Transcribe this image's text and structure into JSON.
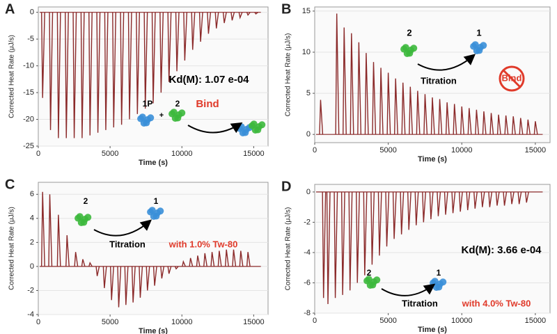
{
  "chart_data": [
    {
      "type": "spike",
      "label": "A",
      "xlabel": "Time (s)",
      "ylabel": "Corrected Heat Rate (μJ/s)",
      "xlim": [
        0,
        16000
      ],
      "ylim": [
        -25,
        1
      ],
      "xticks": [
        0,
        5000,
        10000,
        15000
      ],
      "yticks": [
        0,
        -5,
        -10,
        -15,
        -20,
        -25
      ],
      "color": "#8b2a2a",
      "x": [
        300,
        850,
        1400,
        1950,
        2500,
        3050,
        3600,
        4150,
        4700,
        5250,
        5800,
        6350,
        6900,
        7450,
        8000,
        8550,
        9100,
        9650,
        10200,
        10750,
        11300,
        11850,
        12400,
        12950,
        13500,
        14050,
        14600,
        15150
      ],
      "values": [
        -16,
        -22,
        -23.5,
        -23.5,
        -23.5,
        -23.5,
        -23,
        -22.5,
        -22,
        -21.5,
        -21,
        -20,
        -19,
        -18,
        -17,
        -15,
        -13,
        -11,
        -9,
        -7,
        -5.5,
        -4,
        -3,
        -2,
        -1.5,
        -1,
        -0.5,
        -0.3
      ],
      "annotations": [
        "Kd(M): 1.07 e-04",
        "1P",
        "+",
        "2",
        "Bind"
      ]
    },
    {
      "type": "spike",
      "label": "B",
      "xlabel": "Time (s)",
      "ylabel": "Corrected Heat Rate (μJ/s)",
      "xlim": [
        0,
        16000
      ],
      "ylim": [
        -1,
        15.5
      ],
      "xticks": [
        0,
        5000,
        10000,
        15000
      ],
      "yticks": [
        0,
        5,
        10,
        15
      ],
      "color": "#8b2a2a",
      "x": [
        400,
        1500,
        2000,
        2500,
        3000,
        3500,
        4000,
        4500,
        5000,
        5500,
        6000,
        6500,
        7000,
        7500,
        8000,
        8500,
        9000,
        9500,
        10000,
        10500,
        11000,
        11500,
        12000,
        12500,
        13000,
        13500,
        14000,
        14500,
        15000
      ],
      "values": [
        4.2,
        14.7,
        13,
        12.3,
        11.2,
        9.9,
        8.8,
        8.1,
        7.5,
        6.8,
        6.3,
        5.8,
        5.3,
        4.9,
        4.5,
        4.3,
        3.9,
        3.7,
        3.4,
        3.2,
        3,
        2.8,
        2.6,
        2.4,
        2.3,
        2.2,
        2,
        1.8,
        1.6
      ],
      "annotations": [
        "2",
        "1",
        "Titration",
        "Bind"
      ]
    },
    {
      "type": "spike",
      "label": "C",
      "xlabel": "Time (s)",
      "ylabel": "Corrected Heat Rate (μJ/s)",
      "xlim": [
        0,
        16000
      ],
      "ylim": [
        -4,
        7
      ],
      "xticks": [
        0,
        5000,
        10000,
        15000
      ],
      "yticks": [
        -4,
        -2,
        0,
        2,
        4,
        6
      ],
      "color": "#8b2a2a",
      "x": [
        300,
        800,
        1400,
        2000,
        2600,
        3100,
        3600,
        4100,
        4600,
        5100,
        5600,
        6100,
        6600,
        7100,
        7600,
        8100,
        8600,
        9100,
        9600,
        10100,
        10600,
        11100,
        11600,
        12100,
        12600,
        13100,
        13600,
        14100,
        14600
      ],
      "values": [
        6.2,
        6,
        4.3,
        2.6,
        1.2,
        0.6,
        0.3,
        -0.8,
        -1.8,
        -2.8,
        -3.4,
        -3.2,
        -3,
        -2.6,
        -2,
        -1.6,
        -1,
        -0.6,
        -0.2,
        0.4,
        0.7,
        0.9,
        1.1,
        1.2,
        1.3,
        1.4,
        1.4,
        1.3,
        1.2
      ],
      "annotations": [
        "2",
        "1",
        "Titration",
        "with 1.0% Tw-80"
      ]
    },
    {
      "type": "spike",
      "label": "D",
      "xlabel": "Time (s)",
      "ylabel": "Corrected Heat Rate (μJ/s)",
      "xlim": [
        0,
        16000
      ],
      "ylim": [
        -8,
        0.5
      ],
      "xticks": [
        0,
        5000,
        10000,
        15000
      ],
      "yticks": [
        0,
        -2,
        -4,
        -6,
        -8
      ],
      "color": "#8b2a2a",
      "x": [
        600,
        900,
        1400,
        1900,
        2400,
        2900,
        3400,
        3900,
        4400,
        4900,
        5400,
        5900,
        6400,
        6900,
        7400,
        7900,
        8400,
        8900,
        9400,
        9900,
        10400,
        10900,
        11400,
        11900,
        12400,
        12900,
        13400,
        13900,
        14400
      ],
      "values": [
        -7,
        -7.4,
        -7,
        -6.8,
        -6.5,
        -6,
        -5.5,
        -4.8,
        -4.2,
        -3.6,
        -3.1,
        -2.8,
        -2.5,
        -2.2,
        -2,
        -1.8,
        -1.6,
        -1.5,
        -1.4,
        -1.3,
        -1.2,
        -1.1,
        -1,
        -1,
        -0.9,
        -0.9,
        -0.8,
        -0.8,
        -0.7
      ],
      "annotations": [
        "Kd(M): 3.66 e-04",
        "2",
        "1",
        "Titration",
        "with 4.0% Tw-80"
      ]
    }
  ]
}
